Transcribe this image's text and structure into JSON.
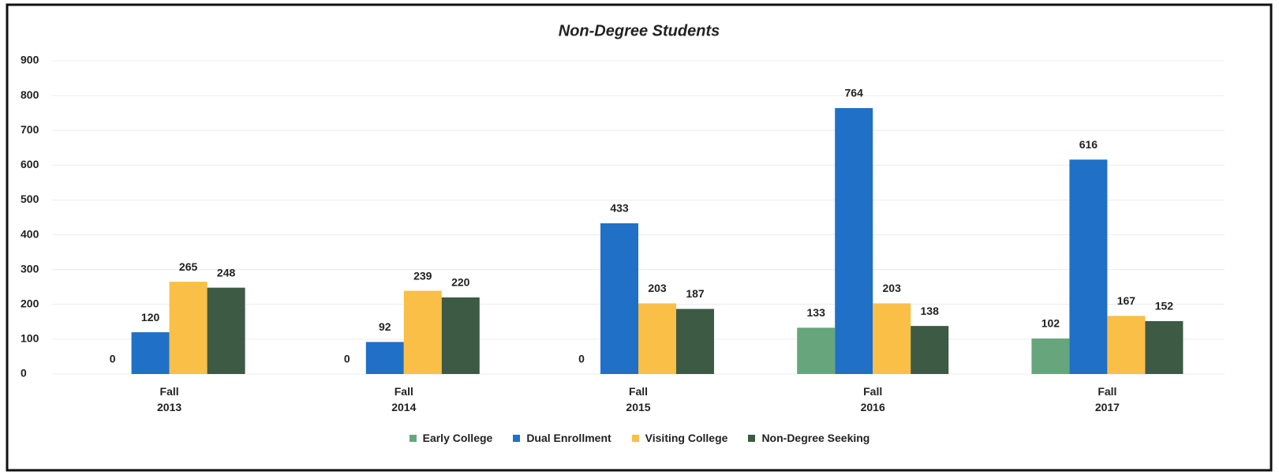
{
  "chart_data": {
    "type": "bar",
    "title": "Non-Degree Students",
    "categories": [
      "Fall 2013",
      "Fall 2014",
      "Fall 2015",
      "Fall 2016",
      "Fall 2017"
    ],
    "series": [
      {
        "name": "Early College",
        "color": "#67a67c",
        "values": [
          0,
          0,
          0,
          133,
          102
        ]
      },
      {
        "name": "Dual Enrollment",
        "color": "#1f70c6",
        "values": [
          120,
          92,
          433,
          764,
          616
        ]
      },
      {
        "name": "Visiting College",
        "color": "#f9bf47",
        "values": [
          265,
          239,
          203,
          203,
          167
        ]
      },
      {
        "name": "Non-Degree Seeking",
        "color": "#3d5a44",
        "values": [
          248,
          220,
          187,
          138,
          152
        ]
      }
    ],
    "ylim": [
      0,
      900
    ],
    "yticks": [
      0,
      100,
      200,
      300,
      400,
      500,
      600,
      700,
      800,
      900
    ],
    "grid": true,
    "legend": "bottom"
  }
}
